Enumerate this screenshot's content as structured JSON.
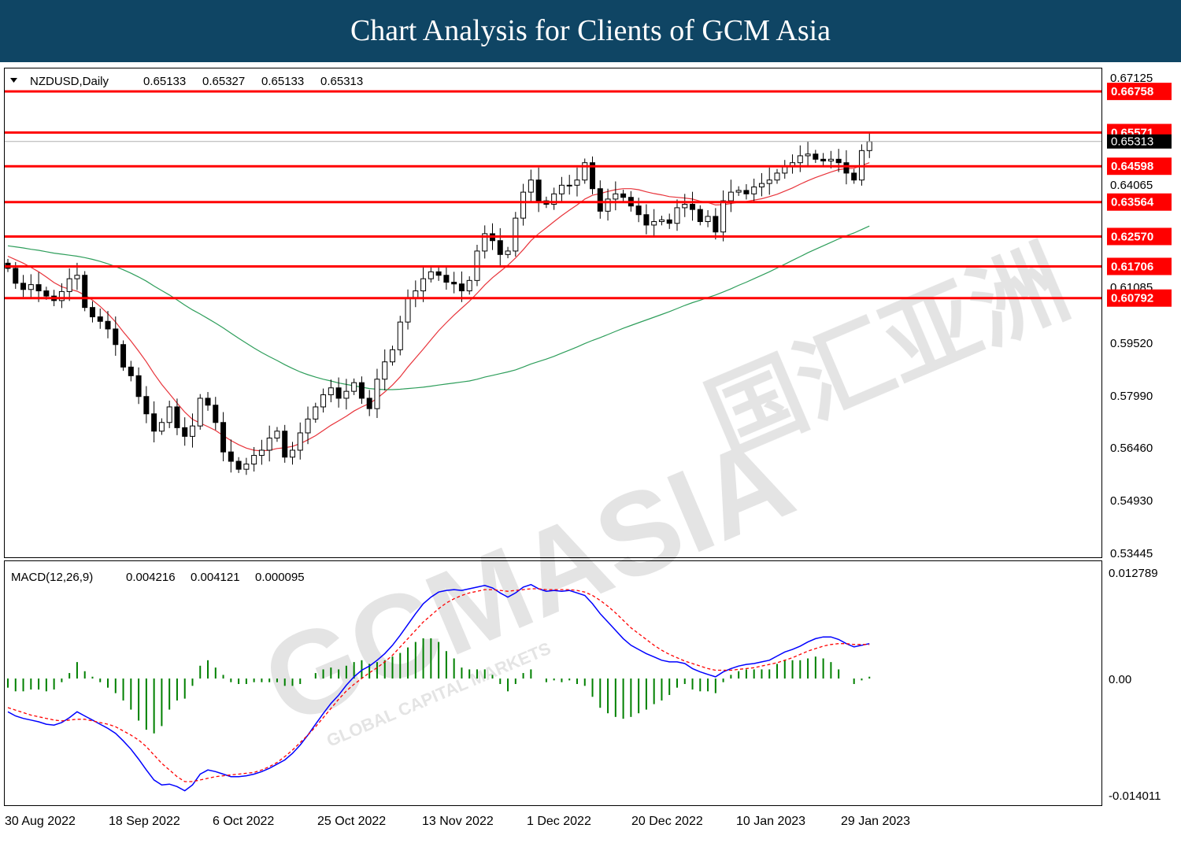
{
  "banner": {
    "title": "Chart Analysis for Clients of GCM Asia",
    "bg_color": "#0f4564"
  },
  "price_panel": {
    "header": {
      "symbol": "NZDUSD,Daily",
      "open": "0.65133",
      "high": "0.65327",
      "low": "0.65133",
      "close": "0.65313"
    },
    "y_ticks": [
      "0.67125",
      "0.64065",
      "0.61085",
      "0.59520",
      "0.57990",
      "0.56460",
      "0.54930",
      "0.53445"
    ],
    "current_price_label": "0.65313",
    "levels": [
      "0.66758",
      "0.65571",
      "0.64598",
      "0.63564",
      "0.62570",
      "0.61706",
      "0.60792"
    ],
    "level_color": "#ff0000"
  },
  "macd_panel": {
    "header": {
      "name": "MACD(12,26,9)",
      "main": "0.004216",
      "signal": "0.004121",
      "hist": "0.000095"
    },
    "y_ticks": [
      "0.012789",
      "0.00",
      "-0.014011"
    ]
  },
  "x_ticks": [
    "30 Aug 2022",
    "18 Sep 2022",
    "6 Oct 2022",
    "25 Oct 2022",
    "13 Nov 2022",
    "1 Dec 2022",
    "20 Dec 2022",
    "10 Jan 2023",
    "29 Jan 2023"
  ],
  "watermark": {
    "main": "GCMASIA",
    "sub": "GLOBAL CAPITAL MARKETS",
    "cn": "国汇亚洲"
  },
  "chart_data": {
    "type": "candlestick",
    "symbol": "NZDUSD",
    "timeframe": "Daily",
    "ylim": [
      0.53445,
      0.67125
    ],
    "x": [
      "2022-08-30",
      "2022-08-31",
      "2022-09-01",
      "2022-09-02",
      "2022-09-05",
      "2022-09-06",
      "2022-09-07",
      "2022-09-08",
      "2022-09-09",
      "2022-09-12",
      "2022-09-13",
      "2022-09-14",
      "2022-09-15",
      "2022-09-16",
      "2022-09-19",
      "2022-09-20",
      "2022-09-21",
      "2022-09-22",
      "2022-09-23",
      "2022-09-26",
      "2022-09-27",
      "2022-09-28",
      "2022-09-29",
      "2022-09-30",
      "2022-10-03",
      "2022-10-04",
      "2022-10-05",
      "2022-10-06",
      "2022-10-07",
      "2022-10-10",
      "2022-10-11",
      "2022-10-12",
      "2022-10-13",
      "2022-10-14",
      "2022-10-17",
      "2022-10-18",
      "2022-10-19",
      "2022-10-20",
      "2022-10-21",
      "2022-10-24",
      "2022-10-25",
      "2022-10-26",
      "2022-10-27",
      "2022-10-28",
      "2022-10-31",
      "2022-11-01",
      "2022-11-02",
      "2022-11-03",
      "2022-11-04",
      "2022-11-07",
      "2022-11-08",
      "2022-11-09",
      "2022-11-10",
      "2022-11-11",
      "2022-11-14",
      "2022-11-15",
      "2022-11-16",
      "2022-11-17",
      "2022-11-18",
      "2022-11-21",
      "2022-11-22",
      "2022-11-23",
      "2022-11-24",
      "2022-11-25",
      "2022-11-28",
      "2022-11-29",
      "2022-11-30",
      "2022-12-01",
      "2022-12-02",
      "2022-12-05",
      "2022-12-06",
      "2022-12-07",
      "2022-12-08",
      "2022-12-09",
      "2022-12-12",
      "2022-12-13",
      "2022-12-14",
      "2022-12-15",
      "2022-12-16",
      "2022-12-19",
      "2022-12-20",
      "2022-12-21",
      "2022-12-22",
      "2022-12-23",
      "2022-12-26",
      "2022-12-27",
      "2022-12-28",
      "2022-12-29",
      "2022-12-30",
      "2023-01-02",
      "2023-01-03",
      "2023-01-04",
      "2023-01-05",
      "2023-01-06",
      "2023-01-09",
      "2023-01-10",
      "2023-01-11",
      "2023-01-12",
      "2023-01-13",
      "2023-01-16",
      "2023-01-17",
      "2023-01-18",
      "2023-01-19",
      "2023-01-20",
      "2023-01-23",
      "2023-01-24",
      "2023-01-25",
      "2023-01-26",
      "2023-01-27",
      "2023-01-30",
      "2023-01-31",
      "2023-02-01",
      "2023-02-02"
    ],
    "ohlc_close": [
      0.6165,
      0.6122,
      0.6104,
      0.6118,
      0.61,
      0.6085,
      0.6072,
      0.6098,
      0.6135,
      0.6145,
      0.6052,
      0.6025,
      0.6012,
      0.599,
      0.5945,
      0.588,
      0.5855,
      0.5795,
      0.5745,
      0.5695,
      0.572,
      0.5765,
      0.5705,
      0.568,
      0.571,
      0.579,
      0.577,
      0.572,
      0.5635,
      0.5608,
      0.5585,
      0.56,
      0.5625,
      0.564,
      0.5675,
      0.5695,
      0.562,
      0.564,
      0.569,
      0.573,
      0.5765,
      0.58,
      0.582,
      0.579,
      0.581,
      0.5835,
      0.579,
      0.576,
      0.5845,
      0.5895,
      0.593,
      0.601,
      0.608,
      0.61,
      0.6135,
      0.6155,
      0.6145,
      0.6125,
      0.612,
      0.61,
      0.613,
      0.6215,
      0.6265,
      0.6245,
      0.6205,
      0.6215,
      0.631,
      0.6385,
      0.642,
      0.636,
      0.635,
      0.638,
      0.6405,
      0.6405,
      0.642,
      0.647,
      0.6395,
      0.633,
      0.6365,
      0.638,
      0.637,
      0.6345,
      0.632,
      0.629,
      0.63,
      0.6305,
      0.6295,
      0.634,
      0.635,
      0.6335,
      0.63,
      0.6315,
      0.627,
      0.636,
      0.6385,
      0.639,
      0.638,
      0.64,
      0.641,
      0.642,
      0.644,
      0.646,
      0.647,
      0.649,
      0.6495,
      0.648,
      0.6475,
      0.648,
      0.647,
      0.644,
      0.642,
      0.6505,
      0.6531
    ],
    "series": [
      {
        "name": "MA fast",
        "color": "#e8343b",
        "values": [
          0.62,
          0.619,
          0.618,
          0.6168,
          0.6155,
          0.614,
          0.6124,
          0.6112,
          0.6105,
          0.6099,
          0.6088,
          0.6073,
          0.6055,
          0.6034,
          0.601,
          0.5982,
          0.5955,
          0.5926,
          0.5895,
          0.5861,
          0.583,
          0.5803,
          0.5776,
          0.575,
          0.5729,
          0.5718,
          0.5708,
          0.5697,
          0.5682,
          0.5668,
          0.5656,
          0.5646,
          0.564,
          0.5638,
          0.564,
          0.5645,
          0.5647,
          0.5651,
          0.5659,
          0.567,
          0.5682,
          0.5697,
          0.5712,
          0.5725,
          0.5738,
          0.5753,
          0.5765,
          0.5775,
          0.579,
          0.5808,
          0.5828,
          0.5852,
          0.588,
          0.5906,
          0.5932,
          0.5959,
          0.5985,
          0.6008,
          0.603,
          0.605,
          0.607,
          0.6093,
          0.6117,
          0.6138,
          0.6156,
          0.6174,
          0.6195,
          0.6219,
          0.6245,
          0.6265,
          0.6282,
          0.63,
          0.6317,
          0.6333,
          0.6348,
          0.6365,
          0.6376,
          0.6381,
          0.6387,
          0.6392,
          0.6395,
          0.6395,
          0.6392,
          0.6386,
          0.6381,
          0.6377,
          0.6372,
          0.637,
          0.6368,
          0.6365,
          0.6359,
          0.6355,
          0.6348,
          0.6349,
          0.6352,
          0.6356,
          0.6358,
          0.6362,
          0.6366,
          0.6372,
          0.6379,
          0.6388,
          0.6397,
          0.6408,
          0.6418,
          0.6427,
          0.6435,
          0.6443,
          0.645,
          0.6453,
          0.6454,
          0.6462,
          0.647
        ]
      },
      {
        "name": "MA slow",
        "color": "#2e9e5b",
        "values": [
          0.623,
          0.6227,
          0.6224,
          0.622,
          0.6217,
          0.6213,
          0.6209,
          0.6206,
          0.6203,
          0.62,
          0.6196,
          0.6191,
          0.6185,
          0.6178,
          0.617,
          0.6161,
          0.6151,
          0.614,
          0.6128,
          0.6114,
          0.6101,
          0.6088,
          0.6074,
          0.6059,
          0.6045,
          0.6033,
          0.602,
          0.6007,
          0.5993,
          0.5978,
          0.5963,
          0.5949,
          0.5935,
          0.5922,
          0.591,
          0.5899,
          0.5887,
          0.5876,
          0.5866,
          0.5858,
          0.5851,
          0.5845,
          0.584,
          0.5834,
          0.583,
          0.5826,
          0.5822,
          0.5818,
          0.5816,
          0.5815,
          0.5815,
          0.5816,
          0.5818,
          0.582,
          0.5822,
          0.5825,
          0.5828,
          0.5831,
          0.5834,
          0.5837,
          0.584,
          0.5845,
          0.5851,
          0.5856,
          0.5861,
          0.5866,
          0.5872,
          0.588,
          0.5889,
          0.5896,
          0.5903,
          0.5911,
          0.592,
          0.5929,
          0.5938,
          0.5948,
          0.5957,
          0.5965,
          0.5974,
          0.5983,
          0.5992,
          0.6,
          0.6008,
          0.6016,
          0.6024,
          0.6032,
          0.604,
          0.6049,
          0.6058,
          0.6066,
          0.6073,
          0.6081,
          0.6088,
          0.6097,
          0.6106,
          0.6116,
          0.6125,
          0.6135,
          0.6145,
          0.6155,
          0.6166,
          0.6177,
          0.6188,
          0.6199,
          0.621,
          0.622,
          0.623,
          0.624,
          0.625,
          0.6259,
          0.6267,
          0.6277,
          0.6287
        ]
      }
    ],
    "macd": {
      "ylim": [
        -0.014011,
        0.012789
      ],
      "main_color": "#0000ff",
      "signal_color": "#ff0000",
      "hist_color": "#008000",
      "main": [
        -0.004,
        -0.0045,
        -0.0048,
        -0.005,
        -0.0052,
        -0.0055,
        -0.0056,
        -0.0053,
        -0.0047,
        -0.004,
        -0.0045,
        -0.005,
        -0.0055,
        -0.006,
        -0.0066,
        -0.0075,
        -0.0085,
        -0.0097,
        -0.011,
        -0.0122,
        -0.0128,
        -0.0127,
        -0.013,
        -0.0135,
        -0.0128,
        -0.0115,
        -0.011,
        -0.0112,
        -0.0115,
        -0.0118,
        -0.0118,
        -0.0117,
        -0.0115,
        -0.0112,
        -0.0108,
        -0.0103,
        -0.0098,
        -0.009,
        -0.008,
        -0.0068,
        -0.0055,
        -0.0042,
        -0.003,
        -0.002,
        -0.0008,
        0.0002,
        0.001,
        0.0015,
        0.0022,
        0.003,
        0.004,
        0.0052,
        0.0065,
        0.0078,
        0.009,
        0.0098,
        0.0104,
        0.0106,
        0.0107,
        0.0106,
        0.0108,
        0.011,
        0.0112,
        0.0109,
        0.0103,
        0.0098,
        0.0103,
        0.011,
        0.0113,
        0.0108,
        0.0105,
        0.0106,
        0.0105,
        0.0106,
        0.0103,
        0.01,
        0.009,
        0.0078,
        0.0068,
        0.0058,
        0.0048,
        0.004,
        0.0035,
        0.003,
        0.0026,
        0.0022,
        0.002,
        0.002,
        0.0018,
        0.0012,
        0.0008,
        0.0005,
        0.0002,
        0.0008,
        0.0012,
        0.0015,
        0.0017,
        0.0018,
        0.002,
        0.0022,
        0.0027,
        0.0032,
        0.0035,
        0.0039,
        0.0044,
        0.0048,
        0.005,
        0.005,
        0.0047,
        0.0042,
        0.0038,
        0.004,
        0.0042
      ],
      "signal": [
        -0.0035,
        -0.0038,
        -0.0041,
        -0.0044,
        -0.0046,
        -0.0048,
        -0.005,
        -0.0051,
        -0.005,
        -0.0049,
        -0.0049,
        -0.0051,
        -0.0053,
        -0.0055,
        -0.0058,
        -0.0063,
        -0.0068,
        -0.0074,
        -0.0082,
        -0.0092,
        -0.0102,
        -0.011,
        -0.0118,
        -0.0124,
        -0.0124,
        -0.0122,
        -0.012,
        -0.0118,
        -0.0117,
        -0.0116,
        -0.0115,
        -0.0114,
        -0.0113,
        -0.011,
        -0.0106,
        -0.0101,
        -0.0094,
        -0.0086,
        -0.0077,
        -0.0068,
        -0.0058,
        -0.0047,
        -0.0036,
        -0.0025,
        -0.0015,
        -0.0007,
        0.0,
        0.0007,
        0.0013,
        0.002,
        0.0028,
        0.0038,
        0.0048,
        0.0058,
        0.0068,
        0.0076,
        0.0084,
        0.0091,
        0.0096,
        0.01,
        0.0103,
        0.0105,
        0.0107,
        0.0107,
        0.0106,
        0.0105,
        0.0106,
        0.0107,
        0.0108,
        0.0108,
        0.0107,
        0.0107,
        0.0107,
        0.0107,
        0.0106,
        0.0104,
        0.01,
        0.0094,
        0.0087,
        0.0079,
        0.007,
        0.0061,
        0.0054,
        0.0047,
        0.004,
        0.0034,
        0.0029,
        0.0025,
        0.0021,
        0.0018,
        0.0015,
        0.0012,
        0.001,
        0.001,
        0.001,
        0.0011,
        0.0012,
        0.0013,
        0.0015,
        0.0017,
        0.0019,
        0.0022,
        0.0025,
        0.0029,
        0.0033,
        0.0036,
        0.0039,
        0.0041,
        0.0042,
        0.0042,
        0.0041,
        0.0041,
        0.0041
      ]
    }
  }
}
